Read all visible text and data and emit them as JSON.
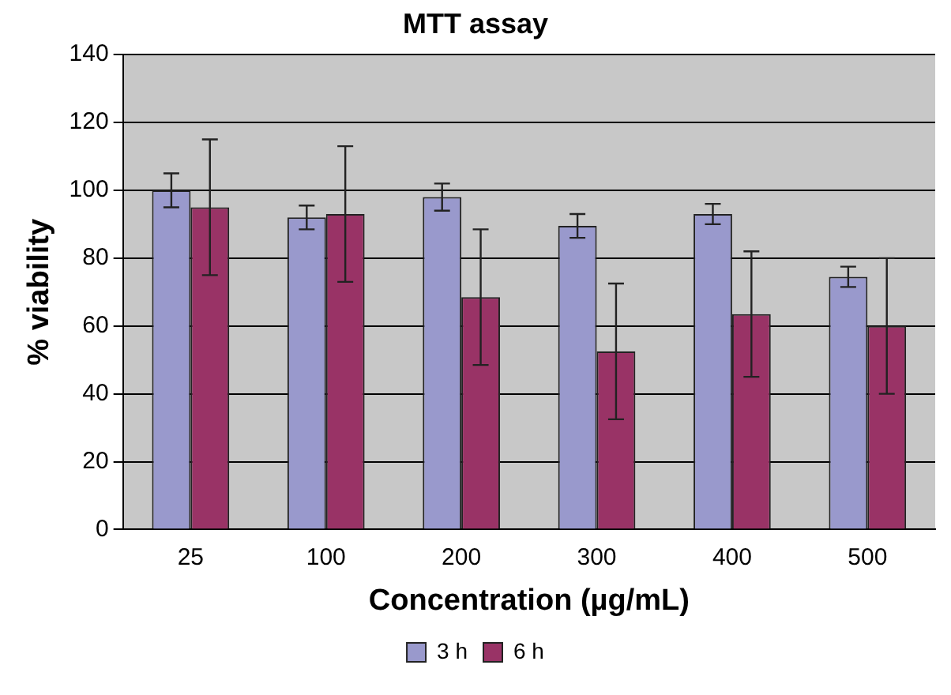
{
  "chart_data": {
    "type": "bar",
    "title": "MTT assay",
    "xlabel": "Concentration (µg/mL)",
    "ylabel": "% viability",
    "categories": [
      "25",
      "100",
      "200",
      "300",
      "400",
      "500"
    ],
    "series": [
      {
        "name": "3 h",
        "color": "#9999cc",
        "values": [
          100,
          92,
          98,
          89.5,
          93,
          74.5
        ],
        "errors": [
          5,
          3.5,
          4,
          3.5,
          3,
          3
        ]
      },
      {
        "name": "6 h",
        "color": "#993366",
        "values": [
          95,
          93,
          68.5,
          52.5,
          63.5,
          60
        ],
        "errors": [
          20,
          20,
          20,
          20,
          18.5,
          20
        ]
      }
    ],
    "ylim": [
      0,
      140
    ],
    "yticks": [
      0,
      20,
      40,
      60,
      80,
      100,
      120,
      140
    ],
    "grid": "y",
    "legend": "bottom"
  }
}
